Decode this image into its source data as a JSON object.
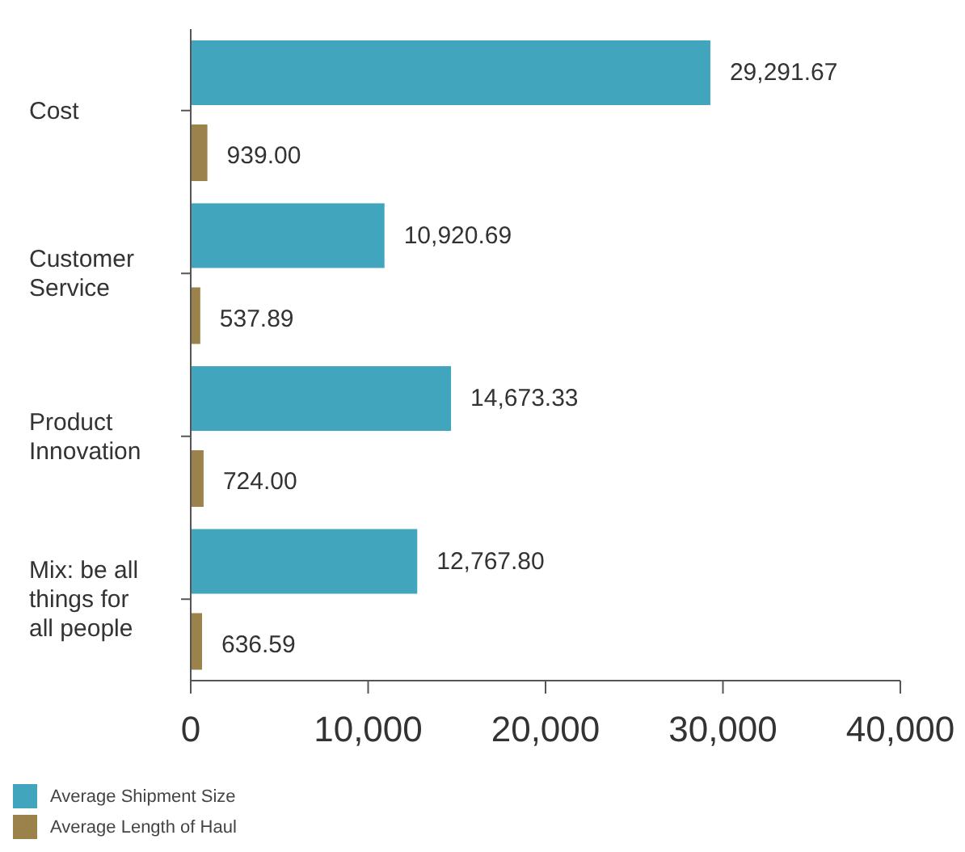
{
  "chart_data": {
    "type": "bar",
    "orientation": "horizontal",
    "categories": [
      "Cost",
      "Customer Service",
      "Product Innovation",
      "Mix: be all things for all people"
    ],
    "series": [
      {
        "name": "Average Shipment Size",
        "color": "#41a5bd",
        "values": [
          29291.67,
          10920.69,
          14673.33,
          12767.8
        ],
        "value_labels": [
          "29,291.67",
          "10,920.69",
          "14,673.33",
          "12,767.80"
        ]
      },
      {
        "name": "Average Length of Haul",
        "color": "#9a824a",
        "values": [
          939,
          537.89,
          724,
          636.59
        ],
        "value_labels": [
          "939.00",
          "537.89",
          "724.00",
          "636.59"
        ]
      }
    ],
    "xlim": [
      0,
      40000
    ],
    "xticks": [
      {
        "value": 0,
        "label": "0"
      },
      {
        "value": 10000,
        "label": "10,000"
      },
      {
        "value": 20000,
        "label": "20,000"
      },
      {
        "value": 30000,
        "label": "30,000"
      },
      {
        "value": 40000,
        "label": "40,000"
      }
    ],
    "grid": false,
    "legend": "bottom left"
  }
}
